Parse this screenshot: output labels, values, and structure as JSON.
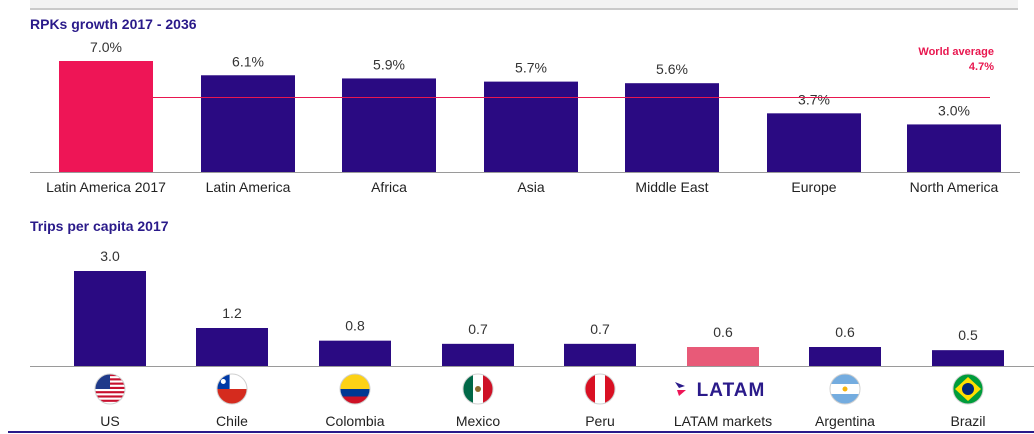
{
  "colors": {
    "primary": "#2a0a82",
    "highlight": "#ee1556",
    "latam_bar": "#e85a78",
    "avg_line": "#e8174f",
    "title": "#2a1a8a",
    "latam_logo": "#2a1a8a"
  },
  "chart_data": [
    {
      "type": "bar",
      "title": "RPKs growth 2017 - 2036",
      "categories": [
        "Latin America 2017",
        "Latin America",
        "Africa",
        "Asia",
        "Middle East",
        "Europe",
        "North America"
      ],
      "values": [
        7.0,
        6.1,
        5.9,
        5.7,
        5.6,
        3.7,
        3.0
      ],
      "value_labels": [
        "7.0%",
        "6.1%",
        "5.9%",
        "5.7%",
        "5.6%",
        "3.7%",
        "3.0%"
      ],
      "highlight_index": 0,
      "reference_line": {
        "label": "World average",
        "value_label": "4.7%",
        "value": 4.7
      },
      "ylim": [
        0,
        7.0
      ],
      "grid": false
    },
    {
      "type": "bar",
      "title": "Trips per capita 2017",
      "categories": [
        "US",
        "Chile",
        "Colombia",
        "Mexico",
        "Peru",
        "LATAM markets",
        "Argentina",
        "Brazil"
      ],
      "values": [
        3.0,
        1.2,
        0.8,
        0.7,
        0.7,
        0.6,
        0.6,
        0.5
      ],
      "value_labels": [
        "3.0",
        "1.2",
        "0.8",
        "0.7",
        "0.7",
        "0.6",
        "0.6",
        "0.5"
      ],
      "highlight_index": 5,
      "category_icons": [
        "us-flag-icon",
        "chile-flag-icon",
        "colombia-flag-icon",
        "mexico-flag-icon",
        "peru-flag-icon",
        "latam-logo-icon",
        "argentina-flag-icon",
        "brazil-flag-icon"
      ],
      "latam_logo_text": "LATAM",
      "ylim": [
        0,
        3.0
      ],
      "grid": false
    }
  ]
}
